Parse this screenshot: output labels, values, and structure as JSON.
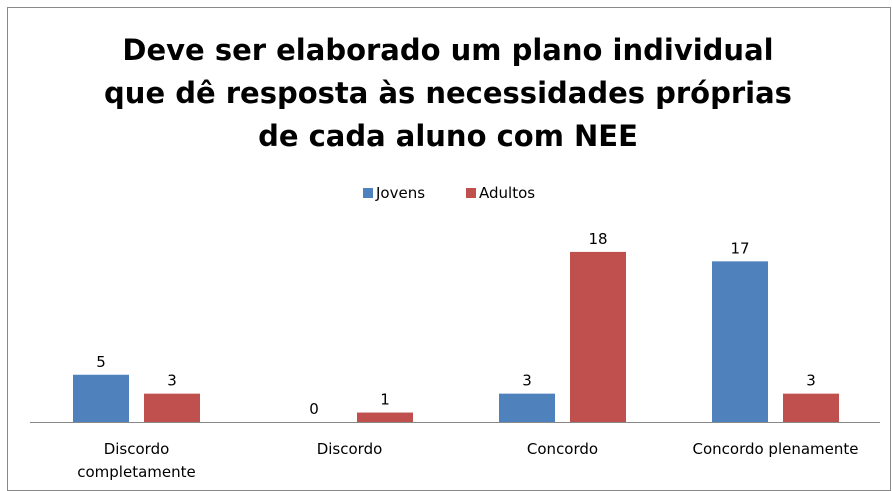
{
  "chart_data": {
    "type": "bar",
    "title": [
      "Deve ser elaborado um plano individual",
      "que dê resposta às necessidades próprias",
      "de cada aluno com NEE"
    ],
    "categories": [
      "Discordo\ncompletamente",
      "Discordo",
      "Concordo",
      "Concordo plenamente"
    ],
    "series": [
      {
        "name": "Jovens",
        "color": "#4f81bd",
        "values": [
          5,
          0,
          3,
          17
        ]
      },
      {
        "name": "Adultos",
        "color": "#c0504d",
        "values": [
          3,
          1,
          18,
          3
        ]
      }
    ],
    "ylim": [
      0,
      20
    ]
  }
}
